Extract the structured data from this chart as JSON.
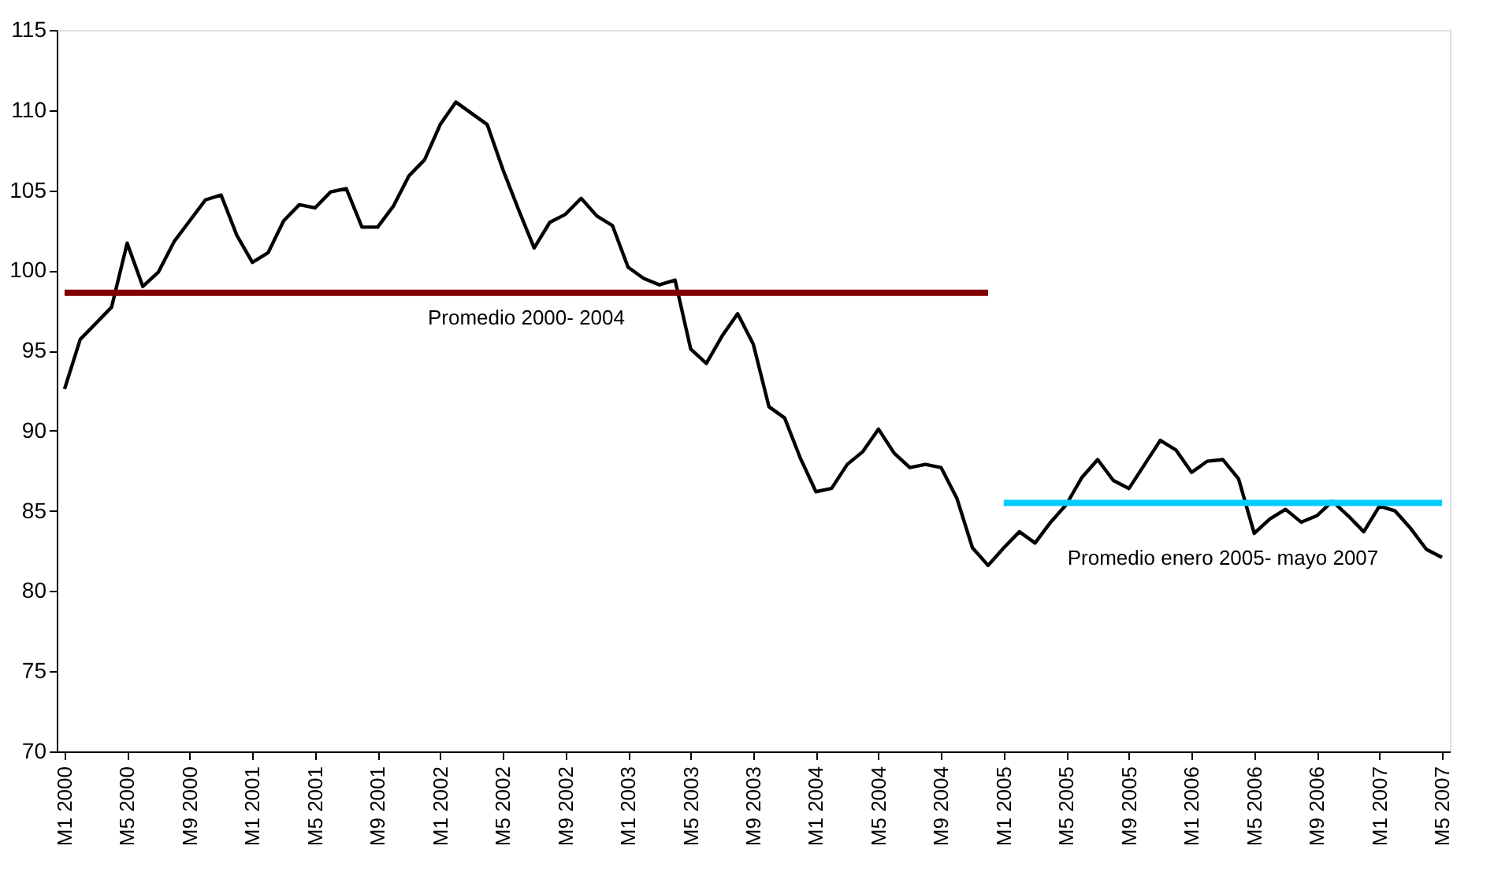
{
  "chart_data": {
    "type": "line",
    "categories": [
      "M1 2000",
      null,
      null,
      null,
      "M5 2000",
      null,
      null,
      null,
      "M9 2000",
      null,
      null,
      null,
      "M1 2001",
      null,
      null,
      null,
      "M5 2001",
      null,
      null,
      null,
      "M9 2001",
      null,
      null,
      null,
      "M1 2002",
      null,
      null,
      null,
      "M5 2002",
      null,
      null,
      null,
      "M9 2002",
      null,
      null,
      null,
      "M1 2003",
      null,
      null,
      null,
      "M5 2003",
      null,
      null,
      null,
      "M9 2003",
      null,
      null,
      null,
      "M1 2004",
      null,
      null,
      null,
      "M5 2004",
      null,
      null,
      null,
      "M9 2004",
      null,
      null,
      null,
      "M1 2005",
      null,
      null,
      null,
      "M5 2005",
      null,
      null,
      null,
      "M9 2005",
      null,
      null,
      null,
      "M1 2006",
      null,
      null,
      null,
      "M5 2006",
      null,
      null,
      null,
      "M9 2006",
      null,
      null,
      null,
      "M1 2007",
      null,
      null,
      null,
      "M5 2007"
    ],
    "series": [
      {
        "color": "#000000",
        "values": [
          92.6,
          95.7,
          96.7,
          97.7,
          101.7,
          99.0,
          99.9,
          101.8,
          103.1,
          104.4,
          104.7,
          102.2,
          100.5,
          101.1,
          103.1,
          104.1,
          103.9,
          104.9,
          105.1,
          102.7,
          102.7,
          104.0,
          105.9,
          106.9,
          109.1,
          110.5,
          109.8,
          109.1,
          106.3,
          103.8,
          101.4,
          103.0,
          103.5,
          104.5,
          103.4,
          102.8,
          100.2,
          99.5,
          99.1,
          99.4,
          95.1,
          94.2,
          95.9,
          97.3,
          95.4,
          91.5,
          90.8,
          88.3,
          86.2,
          86.4,
          87.9,
          88.7,
          90.1,
          88.6,
          87.7,
          87.9,
          87.7,
          85.8,
          82.7,
          81.6,
          82.7,
          83.7,
          83.0,
          84.3,
          85.4,
          87.1,
          88.2,
          86.9,
          86.4,
          87.9,
          89.4,
          88.8,
          87.4,
          88.1,
          88.2,
          87.0,
          83.6,
          84.5,
          85.1,
          84.3,
          84.7,
          85.6,
          84.7,
          83.7,
          85.3,
          85.0,
          83.9,
          82.6,
          82.1
        ]
      },
      {
        "name": "Promedio 2000- 2004",
        "color": "#800000",
        "values": [
          98.6,
          98.6,
          98.6,
          98.6,
          98.6,
          98.6,
          98.6,
          98.6,
          98.6,
          98.6,
          98.6,
          98.6,
          98.6,
          98.6,
          98.6,
          98.6,
          98.6,
          98.6,
          98.6,
          98.6,
          98.6,
          98.6,
          98.6,
          98.6,
          98.6,
          98.6,
          98.6,
          98.6,
          98.6,
          98.6,
          98.6,
          98.6,
          98.6,
          98.6,
          98.6,
          98.6,
          98.6,
          98.6,
          98.6,
          98.6,
          98.6,
          98.6,
          98.6,
          98.6,
          98.6,
          98.6,
          98.6,
          98.6,
          98.6,
          98.6,
          98.6,
          98.6,
          98.6,
          98.6,
          98.6,
          98.6,
          98.6,
          98.6,
          98.6,
          98.6,
          null,
          null,
          null,
          null,
          null,
          null,
          null,
          null,
          null,
          null,
          null,
          null,
          null,
          null,
          null,
          null,
          null,
          null,
          null,
          null,
          null,
          null,
          null,
          null,
          null,
          null,
          null,
          null,
          null
        ]
      },
      {
        "name": "Promedio enero 2005- mayo 2007",
        "color": "#00ccff",
        "values": [
          null,
          null,
          null,
          null,
          null,
          null,
          null,
          null,
          null,
          null,
          null,
          null,
          null,
          null,
          null,
          null,
          null,
          null,
          null,
          null,
          null,
          null,
          null,
          null,
          null,
          null,
          null,
          null,
          null,
          null,
          null,
          null,
          null,
          null,
          null,
          null,
          null,
          null,
          null,
          null,
          null,
          null,
          null,
          null,
          null,
          null,
          null,
          null,
          null,
          null,
          null,
          null,
          null,
          null,
          null,
          null,
          null,
          null,
          null,
          null,
          85.5,
          85.5,
          85.5,
          85.5,
          85.5,
          85.5,
          85.5,
          85.5,
          85.5,
          85.5,
          85.5,
          85.5,
          85.5,
          85.5,
          85.5,
          85.5,
          85.5,
          85.5,
          85.5,
          85.5,
          85.5,
          85.5,
          85.5,
          85.5,
          85.5,
          85.5,
          85.5,
          85.5,
          85.5
        ]
      }
    ],
    "ylim": [
      70,
      115
    ],
    "yticks": [
      70,
      75,
      80,
      85,
      90,
      95,
      100,
      105,
      110,
      115
    ],
    "grid": false
  }
}
